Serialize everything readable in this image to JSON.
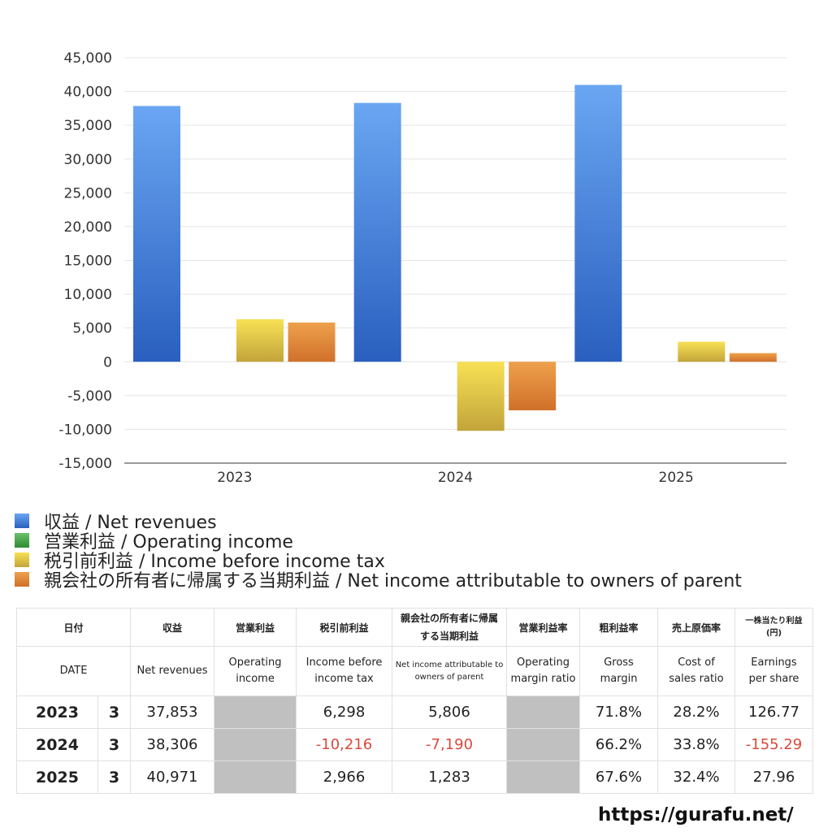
{
  "chart_data": {
    "type": "bar",
    "categories": [
      "2023",
      "2024",
      "2025"
    ],
    "series": [
      {
        "name": "収益 / Net revenues",
        "values": [
          37853,
          38306,
          40971
        ],
        "color": "#3b78d8"
      },
      {
        "name": "営業利益 / Operating income",
        "values": [
          null,
          null,
          null
        ],
        "color": "#44a244"
      },
      {
        "name": "税引前利益 / Income before income tax",
        "values": [
          6298,
          -10216,
          2966
        ],
        "color": "#e8cf3a"
      },
      {
        "name": "親会社の所有者に帰属する当期利益 / Net income attributable to owners of parent",
        "values": [
          5806,
          -7190,
          1283
        ],
        "color": "#e0802e"
      }
    ],
    "ylim": [
      -15000,
      45000
    ],
    "yticks": [
      "45,000",
      "40,000",
      "35,000",
      "30,000",
      "25,000",
      "20,000",
      "15,000",
      "10,000",
      "5,000",
      "0",
      "-5,000",
      "-10,000",
      "-15,000"
    ],
    "grid": true,
    "legend": "bottom-left"
  },
  "table": {
    "headers_ja": [
      "日付",
      "収益",
      "営業利益",
      "税引前利益",
      "親会社の所有者に帰属する当期利益",
      "営業利益率",
      "粗利益率",
      "売上原価率",
      "一株当たり利益(円)"
    ],
    "headers_en": [
      "DATE",
      "Net revenues",
      "Operating income",
      "Income before income tax",
      "Net income attributable to owners of parent",
      "Operating margin ratio",
      "Gross margin",
      "Cost of sales ratio",
      "Earnings per share"
    ],
    "rows": [
      {
        "year": "2023",
        "month": "3",
        "revenue": "37,853",
        "operating": "",
        "pretax": "6,298",
        "net": "5,806",
        "op_margin": "",
        "gross": "71.8%",
        "cost": "28.2%",
        "eps": "126.77"
      },
      {
        "year": "2024",
        "month": "3",
        "revenue": "38,306",
        "operating": "",
        "pretax": "-10,216",
        "net": "-7,190",
        "op_margin": "",
        "gross": "66.2%",
        "cost": "33.8%",
        "eps": "-155.29"
      },
      {
        "year": "2025",
        "month": "3",
        "revenue": "40,971",
        "operating": "",
        "pretax": "2,966",
        "net": "1,283",
        "op_margin": "",
        "gross": "67.6%",
        "cost": "32.4%",
        "eps": "27.96"
      }
    ]
  },
  "footer": {
    "url": "https://gurafu.net/"
  }
}
